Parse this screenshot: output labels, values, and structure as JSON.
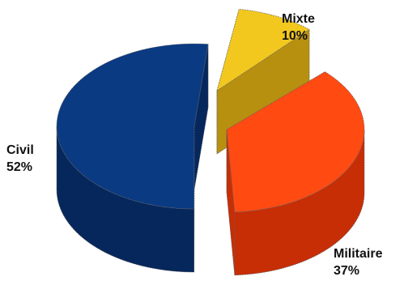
{
  "chart_data": {
    "type": "pie",
    "style": "3d-exploded",
    "slices": [
      {
        "label": "Civil",
        "value": 52,
        "value_label": "52%",
        "color": "#0a3a82",
        "side_color": "#06275c"
      },
      {
        "label": "Mixte",
        "value": 10,
        "value_label": "10%",
        "color": "#f2c81e",
        "side_color": "#b89010"
      },
      {
        "label": "Militaire",
        "value": 37,
        "value_label": "37%",
        "color": "#ff4a12",
        "side_color": "#c72e06"
      }
    ],
    "legend": "none",
    "grid": false
  }
}
